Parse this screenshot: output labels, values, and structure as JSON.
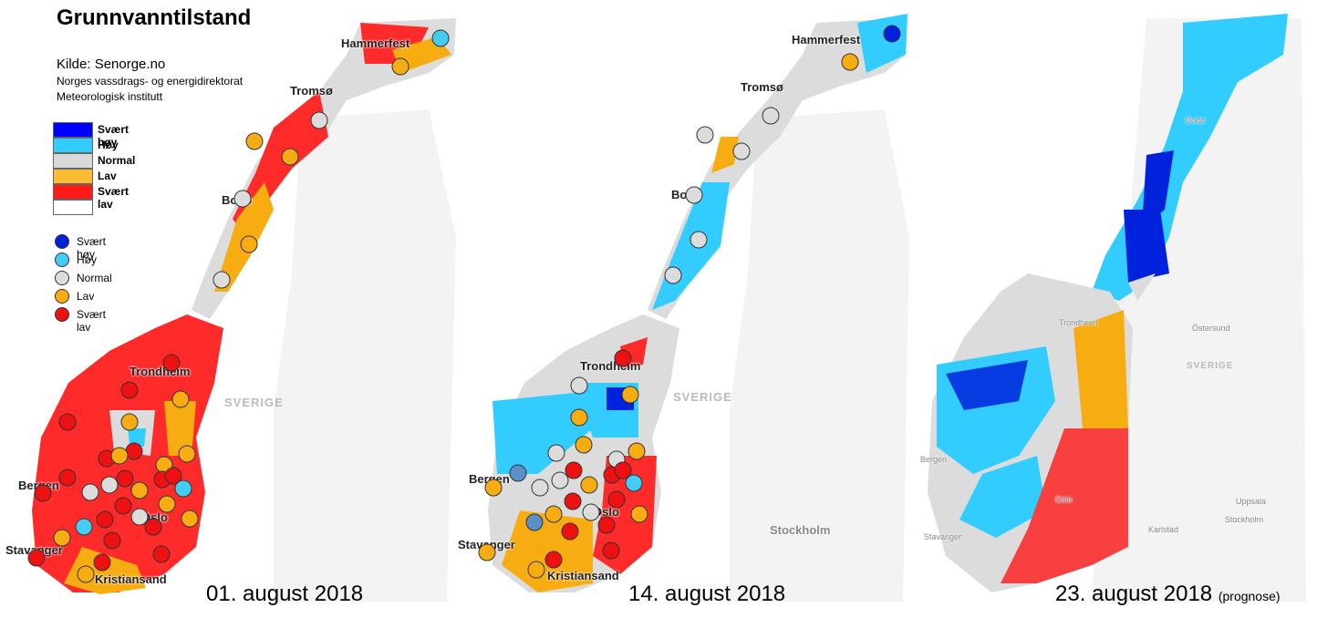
{
  "title": "Grunnvanntilstand",
  "source": {
    "line1": "Kilde: Senorge.no",
    "line2": "Norges vassdrags- og energidirektorat",
    "line3": "Meteorologisk institutt"
  },
  "area_legend": [
    {
      "label": "Svært høy",
      "color": "#0000ff"
    },
    {
      "label": "Høy",
      "color": "#33ccff"
    },
    {
      "label": "Normal",
      "color": "#d9d9d9"
    },
    {
      "label": "Lav",
      "color": "#ffbb33"
    },
    {
      "label": "Svært lav",
      "color": "#ff1a1a"
    },
    {
      "label": "",
      "color": "#ffffff"
    }
  ],
  "point_legend": [
    {
      "label": "Svært høy",
      "color": "#0022dd"
    },
    {
      "label": "Høy",
      "color": "#44ccf2"
    },
    {
      "label": "Normal",
      "color": "#dcdcdc"
    },
    {
      "label": "Lav",
      "color": "#f7ad12"
    },
    {
      "label": "Svært lav",
      "color": "#ee1111"
    }
  ],
  "maps": [
    {
      "date": "01. august 2018",
      "suffix": "",
      "cities": [
        "Hammerfest",
        "Tromsø",
        "Bodø",
        "Trondheim",
        "Bergen",
        "Oslo",
        "Stavanger",
        "Kristiansand"
      ],
      "country": "SVERIGE",
      "stations": {
        "svaert_hoy": 0,
        "hoy": 2,
        "normal": 8,
        "lav": 15,
        "svaert_lav": 27
      }
    },
    {
      "date": "14. august 2018",
      "suffix": "",
      "cities": [
        "Hammerfest",
        "Tromsø",
        "Bodø",
        "Trondheim",
        "Bergen",
        "Oslo",
        "Stavanger",
        "Kristiansand",
        "Stockholm"
      ],
      "country": "SVERIGE",
      "stations": {
        "svaert_hoy": 1,
        "hoy": 1,
        "normal": 13,
        "lav": 16,
        "svaert_lav": 15
      }
    },
    {
      "date": "23. august 2018",
      "suffix": "(prognose)",
      "cities": [
        "Bodø",
        "Trondheim",
        "Bergen",
        "Oslo",
        "Stavanger",
        "Östersund",
        "Stockholm",
        "Uppsala",
        "Karlstad"
      ],
      "country": "SVERIGE",
      "stations": null
    }
  ]
}
